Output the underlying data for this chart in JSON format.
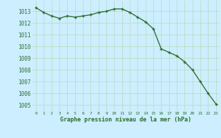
{
  "x": [
    0,
    1,
    2,
    3,
    4,
    5,
    6,
    7,
    8,
    9,
    10,
    11,
    12,
    13,
    14,
    15,
    16,
    17,
    18,
    19,
    20,
    21,
    22,
    23
  ],
  "y": [
    1013.3,
    1012.9,
    1012.6,
    1012.4,
    1012.6,
    1012.5,
    1012.6,
    1012.7,
    1012.9,
    1013.0,
    1013.2,
    1013.2,
    1012.9,
    1012.5,
    1012.1,
    1011.5,
    1009.8,
    1009.5,
    1009.2,
    1008.7,
    1008.0,
    1007.0,
    1006.0,
    1005.1
  ],
  "line_color": "#2d6e2d",
  "marker_color": "#2d6e2d",
  "bg_color": "#cceeff",
  "grid_color": "#b8d8b8",
  "xlabel": "Graphe pression niveau de la mer (hPa)",
  "xlabel_color": "#2d6e2d",
  "tick_color": "#2d6e2d",
  "ylim": [
    1004.5,
    1013.9
  ],
  "yticks": [
    1005,
    1006,
    1007,
    1008,
    1009,
    1010,
    1011,
    1012,
    1013
  ],
  "xticks": [
    0,
    1,
    2,
    3,
    4,
    5,
    6,
    7,
    8,
    9,
    10,
    11,
    12,
    13,
    14,
    15,
    16,
    17,
    18,
    19,
    20,
    21,
    22,
    23
  ],
  "line_width": 1.0,
  "marker_size": 2.5
}
